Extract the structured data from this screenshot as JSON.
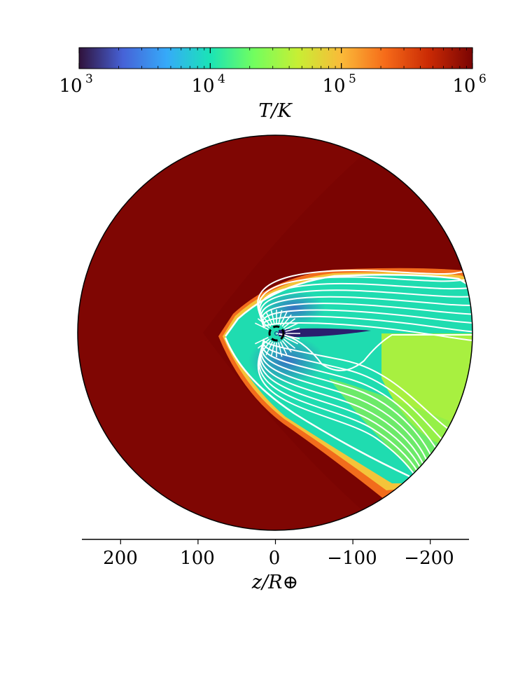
{
  "chart_data": {
    "type": "heatmap",
    "colorbar": {
      "label": "T/K",
      "scale": "log",
      "colormap": "turbo",
      "range": [
        1000,
        1000000
      ],
      "ticks": [
        {
          "base": "10",
          "exp": "3"
        },
        {
          "base": "10",
          "exp": "4"
        },
        {
          "base": "10",
          "exp": "5"
        },
        {
          "base": "10",
          "exp": "6"
        }
      ],
      "colors": [
        "#30123b",
        "#4662d7",
        "#36aaf9",
        "#1ae4b6",
        "#72fe5e",
        "#c7ef34",
        "#faba39",
        "#f66b19",
        "#ca2a04",
        "#7a0403"
      ]
    },
    "x_axis": {
      "label": "z/R⊕",
      "range": [
        250,
        -250
      ],
      "direction": "reversed",
      "ticks": [
        "200",
        "100",
        "0",
        "−100",
        "−200"
      ]
    },
    "field_lines": {
      "color": "#ffffff"
    },
    "planet_marker": {
      "style": "dashed circle",
      "color": "#000000"
    },
    "background_temperature_K": 1000000,
    "grid": false
  }
}
